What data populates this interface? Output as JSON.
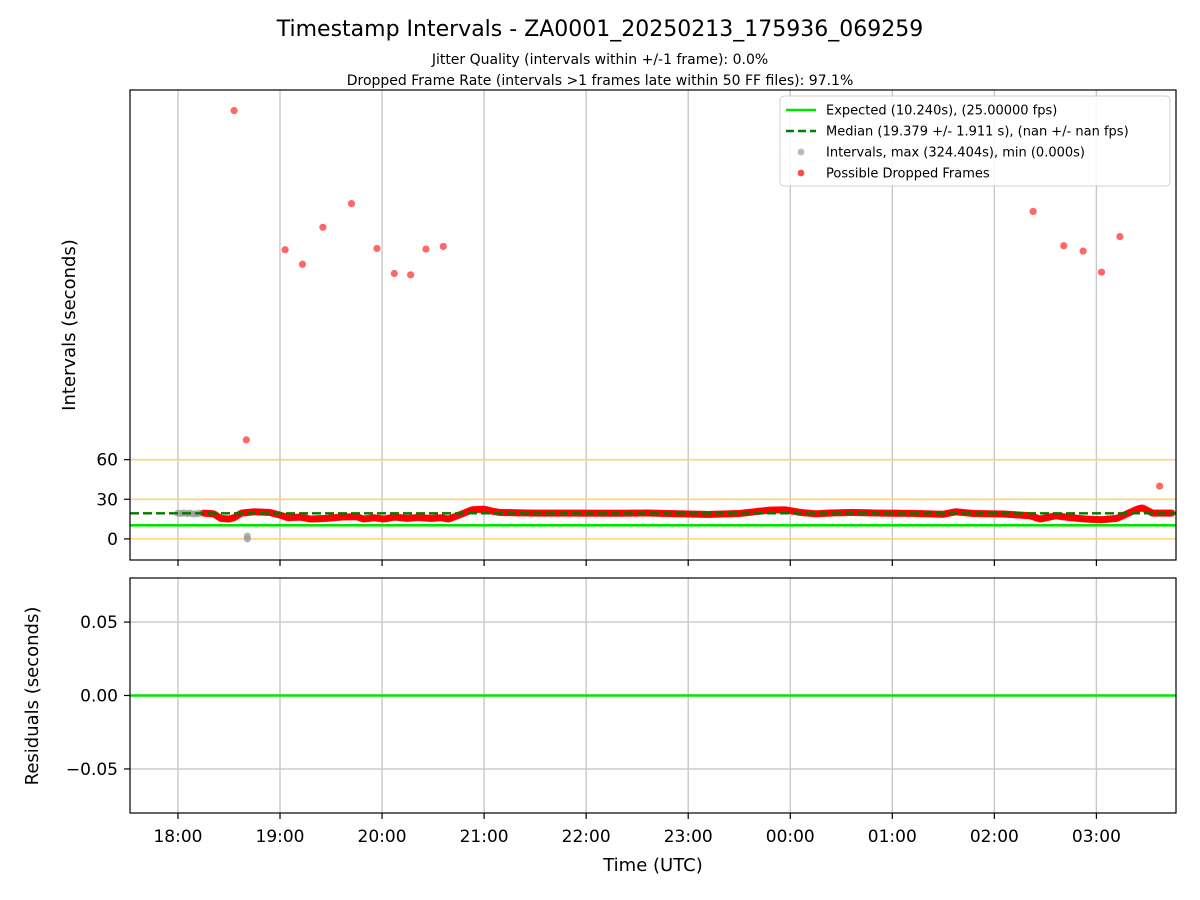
{
  "chart_data": {
    "type": "scatter",
    "title": "Timestamp Intervals - ZA0001_20250213_175936_069259",
    "subtitles": [
      "Jitter Quality (intervals within +/-1 frame): 0.0%",
      "Dropped Frame Rate (intervals >1 frames late within 50 FF files): 97.1%"
    ],
    "x_axis": {
      "label": "Time (UTC)",
      "unit": "hours since 18:00 UTC",
      "range": [
        -0.47,
        9.78
      ],
      "ticks": [
        0,
        1,
        2,
        3,
        4,
        5,
        6,
        7,
        8,
        9
      ],
      "tick_labels": [
        "18:00",
        "19:00",
        "20:00",
        "21:00",
        "22:00",
        "23:00",
        "00:00",
        "01:00",
        "02:00",
        "03:00"
      ],
      "grid": true
    },
    "panels": [
      {
        "name": "intervals",
        "ylabel": "Intervals (seconds)",
        "ylim": [
          -16,
          340
        ],
        "yticks": [
          0,
          30,
          60
        ],
        "ytick_labels": [
          "0",
          "30",
          "60"
        ],
        "threshold_lines": [
          0,
          30,
          60
        ],
        "threshold_color": "#ffd56e",
        "legend_position": "upper right",
        "series": [
          {
            "name": "Expected (10.240s), (25.00000 fps)",
            "kind": "hline",
            "value": 10.24,
            "color": "#00e600",
            "style": "solid"
          },
          {
            "name": "Median (19.379 +/- 1.911 s), (nan +/- nan fps)",
            "kind": "hline",
            "value": 19.379,
            "color": "#007a00",
            "style": "dashed"
          },
          {
            "name": "Intervals, max (324.404s), min (0.000s)",
            "kind": "scatter",
            "color": "#9a9a9a",
            "points": [
              [
                0.0,
                19.4
              ],
              [
                0.03,
                19.2
              ],
              [
                0.06,
                19.6
              ],
              [
                0.09,
                19.1
              ],
              [
                0.12,
                19.5
              ],
              [
                0.15,
                18.8
              ],
              [
                0.18,
                19.0
              ],
              [
                0.21,
                19.3
              ],
              [
                0.68,
                2.0
              ],
              [
                0.68,
                0.0
              ]
            ]
          },
          {
            "name": "Possible Dropped Frames",
            "kind": "scatter",
            "color": "#ff0000",
            "baseline": [
              [
                0.25,
                19.5
              ],
              [
                0.35,
                19.0
              ],
              [
                0.42,
                15.5
              ],
              [
                0.5,
                15.0
              ],
              [
                0.55,
                16.0
              ],
              [
                0.62,
                19.5
              ],
              [
                0.75,
                20.5
              ],
              [
                0.9,
                20.0
              ],
              [
                1.0,
                18.0
              ],
              [
                1.08,
                16.0
              ],
              [
                1.2,
                16.5
              ],
              [
                1.3,
                15.0
              ],
              [
                1.45,
                15.5
              ],
              [
                1.6,
                16.5
              ],
              [
                1.75,
                16.8
              ],
              [
                1.82,
                15.0
              ],
              [
                1.92,
                16.0
              ],
              [
                2.02,
                15.0
              ],
              [
                2.12,
                16.5
              ],
              [
                2.25,
                15.5
              ],
              [
                2.35,
                16.2
              ],
              [
                2.48,
                15.5
              ],
              [
                2.58,
                16.0
              ],
              [
                2.65,
                15.0
              ],
              [
                2.72,
                17.0
              ],
              [
                2.82,
                20.0
              ],
              [
                2.88,
                22.0
              ],
              [
                3.0,
                22.5
              ],
              [
                3.08,
                21.0
              ],
              [
                3.15,
                20.0
              ],
              [
                3.5,
                19.5
              ],
              [
                3.9,
                19.5
              ],
              [
                4.3,
                19.4
              ],
              [
                4.6,
                19.6
              ],
              [
                4.9,
                19.0
              ],
              [
                5.2,
                18.5
              ],
              [
                5.5,
                19.2
              ],
              [
                5.65,
                20.5
              ],
              [
                5.8,
                21.8
              ],
              [
                5.95,
                22.0
              ],
              [
                6.1,
                20.0
              ],
              [
                6.25,
                19.0
              ],
              [
                6.4,
                19.6
              ],
              [
                6.6,
                20.0
              ],
              [
                6.9,
                19.5
              ],
              [
                7.2,
                19.3
              ],
              [
                7.5,
                18.6
              ],
              [
                7.62,
                20.5
              ],
              [
                7.8,
                19.2
              ],
              [
                8.1,
                18.8
              ],
              [
                8.35,
                17.5
              ],
              [
                8.45,
                15.0
              ],
              [
                8.6,
                17.5
              ],
              [
                8.75,
                16.0
              ],
              [
                8.9,
                15.0
              ],
              [
                9.05,
                14.5
              ],
              [
                9.2,
                15.5
              ],
              [
                9.3,
                19.0
              ],
              [
                9.4,
                22.5
              ],
              [
                9.45,
                23.5
              ],
              [
                9.55,
                19.5
              ],
              [
                9.65,
                19.5
              ],
              [
                9.75,
                19.5
              ]
            ],
            "outliers": [
              [
                0.55,
                324.4
              ],
              [
                0.67,
                75.0
              ],
              [
                1.05,
                219.0
              ],
              [
                1.22,
                208.0
              ],
              [
                1.42,
                236.0
              ],
              [
                1.7,
                254.0
              ],
              [
                1.95,
                220.0
              ],
              [
                2.12,
                201.0
              ],
              [
                2.28,
                200.0
              ],
              [
                2.43,
                219.5
              ],
              [
                2.6,
                221.5
              ],
              [
                8.38,
                248.0
              ],
              [
                8.68,
                222.0
              ],
              [
                8.87,
                218.0
              ],
              [
                9.05,
                202.0
              ],
              [
                9.23,
                229.0
              ],
              [
                9.62,
                40.0
              ]
            ]
          }
        ]
      },
      {
        "name": "residuals",
        "ylabel": "Residuals (seconds)",
        "ylim": [
          -0.08,
          0.08
        ],
        "yticks": [
          -0.05,
          0.0,
          0.05
        ],
        "ytick_labels": [
          "−0.05",
          "0.00",
          "0.05"
        ],
        "series": [
          {
            "name": "Residuals",
            "kind": "hline",
            "value": 0.0,
            "color": "#00e600",
            "style": "solid"
          }
        ]
      }
    ]
  }
}
